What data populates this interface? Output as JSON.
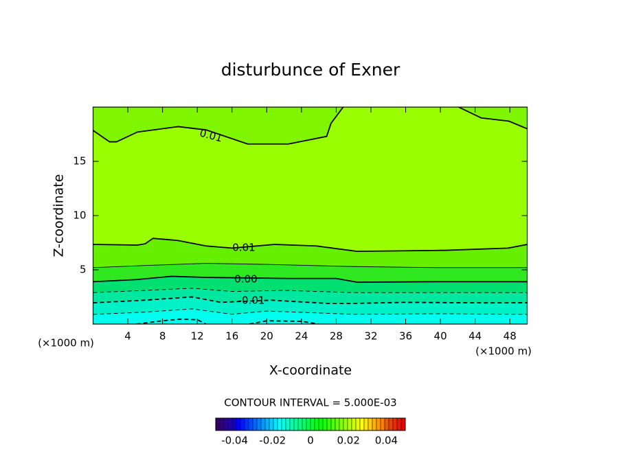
{
  "chart_data": {
    "type": "contour",
    "title": "disturbunce of Exner",
    "xlabel": "X-coordinate",
    "ylabel": "Z-coordinate",
    "x_unit_label": "(×1000 m)",
    "y_unit_label": "(×1000 m)",
    "xlim": [
      0,
      50
    ],
    "xticks": [
      4,
      8,
      12,
      16,
      20,
      24,
      28,
      32,
      36,
      40,
      44,
      48
    ],
    "ylim": [
      0,
      20
    ],
    "yticks": [
      5,
      10,
      15
    ],
    "plot_color": "#00ffee",
    "contours": [
      {
        "level": 0.01,
        "bold": true,
        "dashed": false,
        "fill_above": "#80f500",
        "x": [
          0,
          1.9,
          2.7,
          5.1,
          9.8,
          13,
          17.8,
          22.5,
          26.9,
          27.4,
          28.8,
          null,
          42.1,
          44.7,
          47.9,
          50
        ],
        "y": [
          17.85,
          16.8,
          16.8,
          17.7,
          18.2,
          17.9,
          16.6,
          16.6,
          17.3,
          18.5,
          20,
          null,
          20,
          19.0,
          18.7,
          18.0
        ]
      },
      {
        "level": 0.01,
        "bold": true,
        "dashed": false,
        "fill_above": "#99ff00",
        "x": [
          0,
          5.1,
          6,
          6.9,
          9.8,
          13,
          16,
          20.9,
          25.7,
          30.4,
          40.7,
          47.8,
          50
        ],
        "y": [
          7.34,
          7.28,
          7.4,
          7.9,
          7.7,
          7.2,
          7.0,
          7.34,
          7.2,
          6.7,
          6.8,
          7.0,
          7.34
        ]
      },
      {
        "level": 0.005,
        "bold": false,
        "dashed": false,
        "fill_above": "#66f000",
        "x": [
          0,
          6,
          13,
          20,
          30,
          40,
          50
        ],
        "y": [
          5.2,
          5.4,
          5.6,
          5.5,
          5.3,
          5.2,
          5.2
        ]
      },
      {
        "level": 0,
        "value_label": "0.00",
        "bold": true,
        "dashed": false,
        "fill_above": "#30e820",
        "x": [
          0,
          5,
          9,
          13,
          22.5,
          28,
          30.4,
          40,
          50
        ],
        "y": [
          3.9,
          4.1,
          4.4,
          4.3,
          4.2,
          4.2,
          3.86,
          3.9,
          3.9
        ]
      },
      {
        "level": -0.005,
        "bold": false,
        "dashed": true,
        "fill_above": "#00e070",
        "x": [
          0,
          6,
          11.4,
          16,
          22,
          30,
          40,
          50
        ],
        "y": [
          2.9,
          3.1,
          3.3,
          3.0,
          3.1,
          2.9,
          2.9,
          2.9
        ]
      },
      {
        "level": -0.01,
        "bold": true,
        "dashed": true,
        "fill_above": "#00e8a0",
        "x": [
          0,
          6,
          11.4,
          14.7,
          20.5,
          27,
          30,
          36,
          45,
          50
        ],
        "y": [
          1.96,
          2.2,
          2.5,
          2.0,
          2.2,
          1.9,
          1.9,
          2.0,
          1.95,
          1.96
        ]
      },
      {
        "level": -0.015,
        "bold": false,
        "dashed": true,
        "fill_above": "#00f0c8",
        "x": [
          0,
          6,
          11.4,
          16,
          20,
          30,
          40,
          50
        ],
        "y": [
          0.89,
          1.1,
          1.4,
          0.9,
          1.2,
          0.9,
          0.95,
          0.89
        ]
      },
      {
        "level": -0.02,
        "bold": true,
        "dashed": true,
        "x": [
          5,
          8,
          10,
          12,
          13,
          null,
          18,
          20,
          24,
          26
        ],
        "y": [
          0,
          0.3,
          0.45,
          0.4,
          0,
          null,
          0,
          0.3,
          0.25,
          0
        ]
      }
    ],
    "contour_interval_label": "CONTOUR INTERVAL = 5.000E-03",
    "colorbar_lim": [
      -0.05,
      0.05
    ],
    "colorbar_ticks": [
      -0.04,
      -0.02,
      0,
      0.02,
      0.04
    ]
  }
}
